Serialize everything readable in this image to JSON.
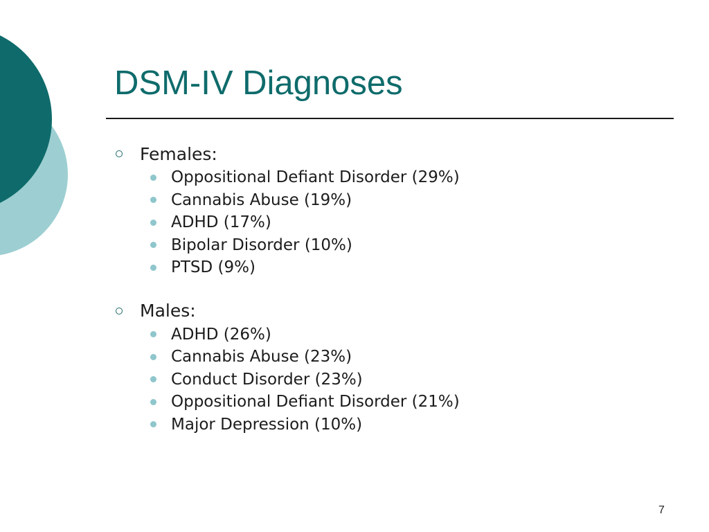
{
  "slide": {
    "title": "DSM-IV Diagnoses",
    "page_number": "7",
    "colors": {
      "accent_dark": "#0f6b6b",
      "accent_light": "#9dcfd2",
      "bullet_light": "#8ec6cc"
    },
    "sections": [
      {
        "label": "Females:",
        "items": [
          "Oppositional Defiant Disorder (29%)",
          "Cannabis Abuse (19%)",
          "ADHD (17%)",
          "Bipolar Disorder (10%)",
          "PTSD (9%)"
        ]
      },
      {
        "label": "Males:",
        "items": [
          "ADHD (26%)",
          "Cannabis Abuse (23%)",
          "Conduct Disorder (23%)",
          "Oppositional Defiant Disorder (21%)",
          "Major Depression (10%)"
        ]
      }
    ]
  }
}
